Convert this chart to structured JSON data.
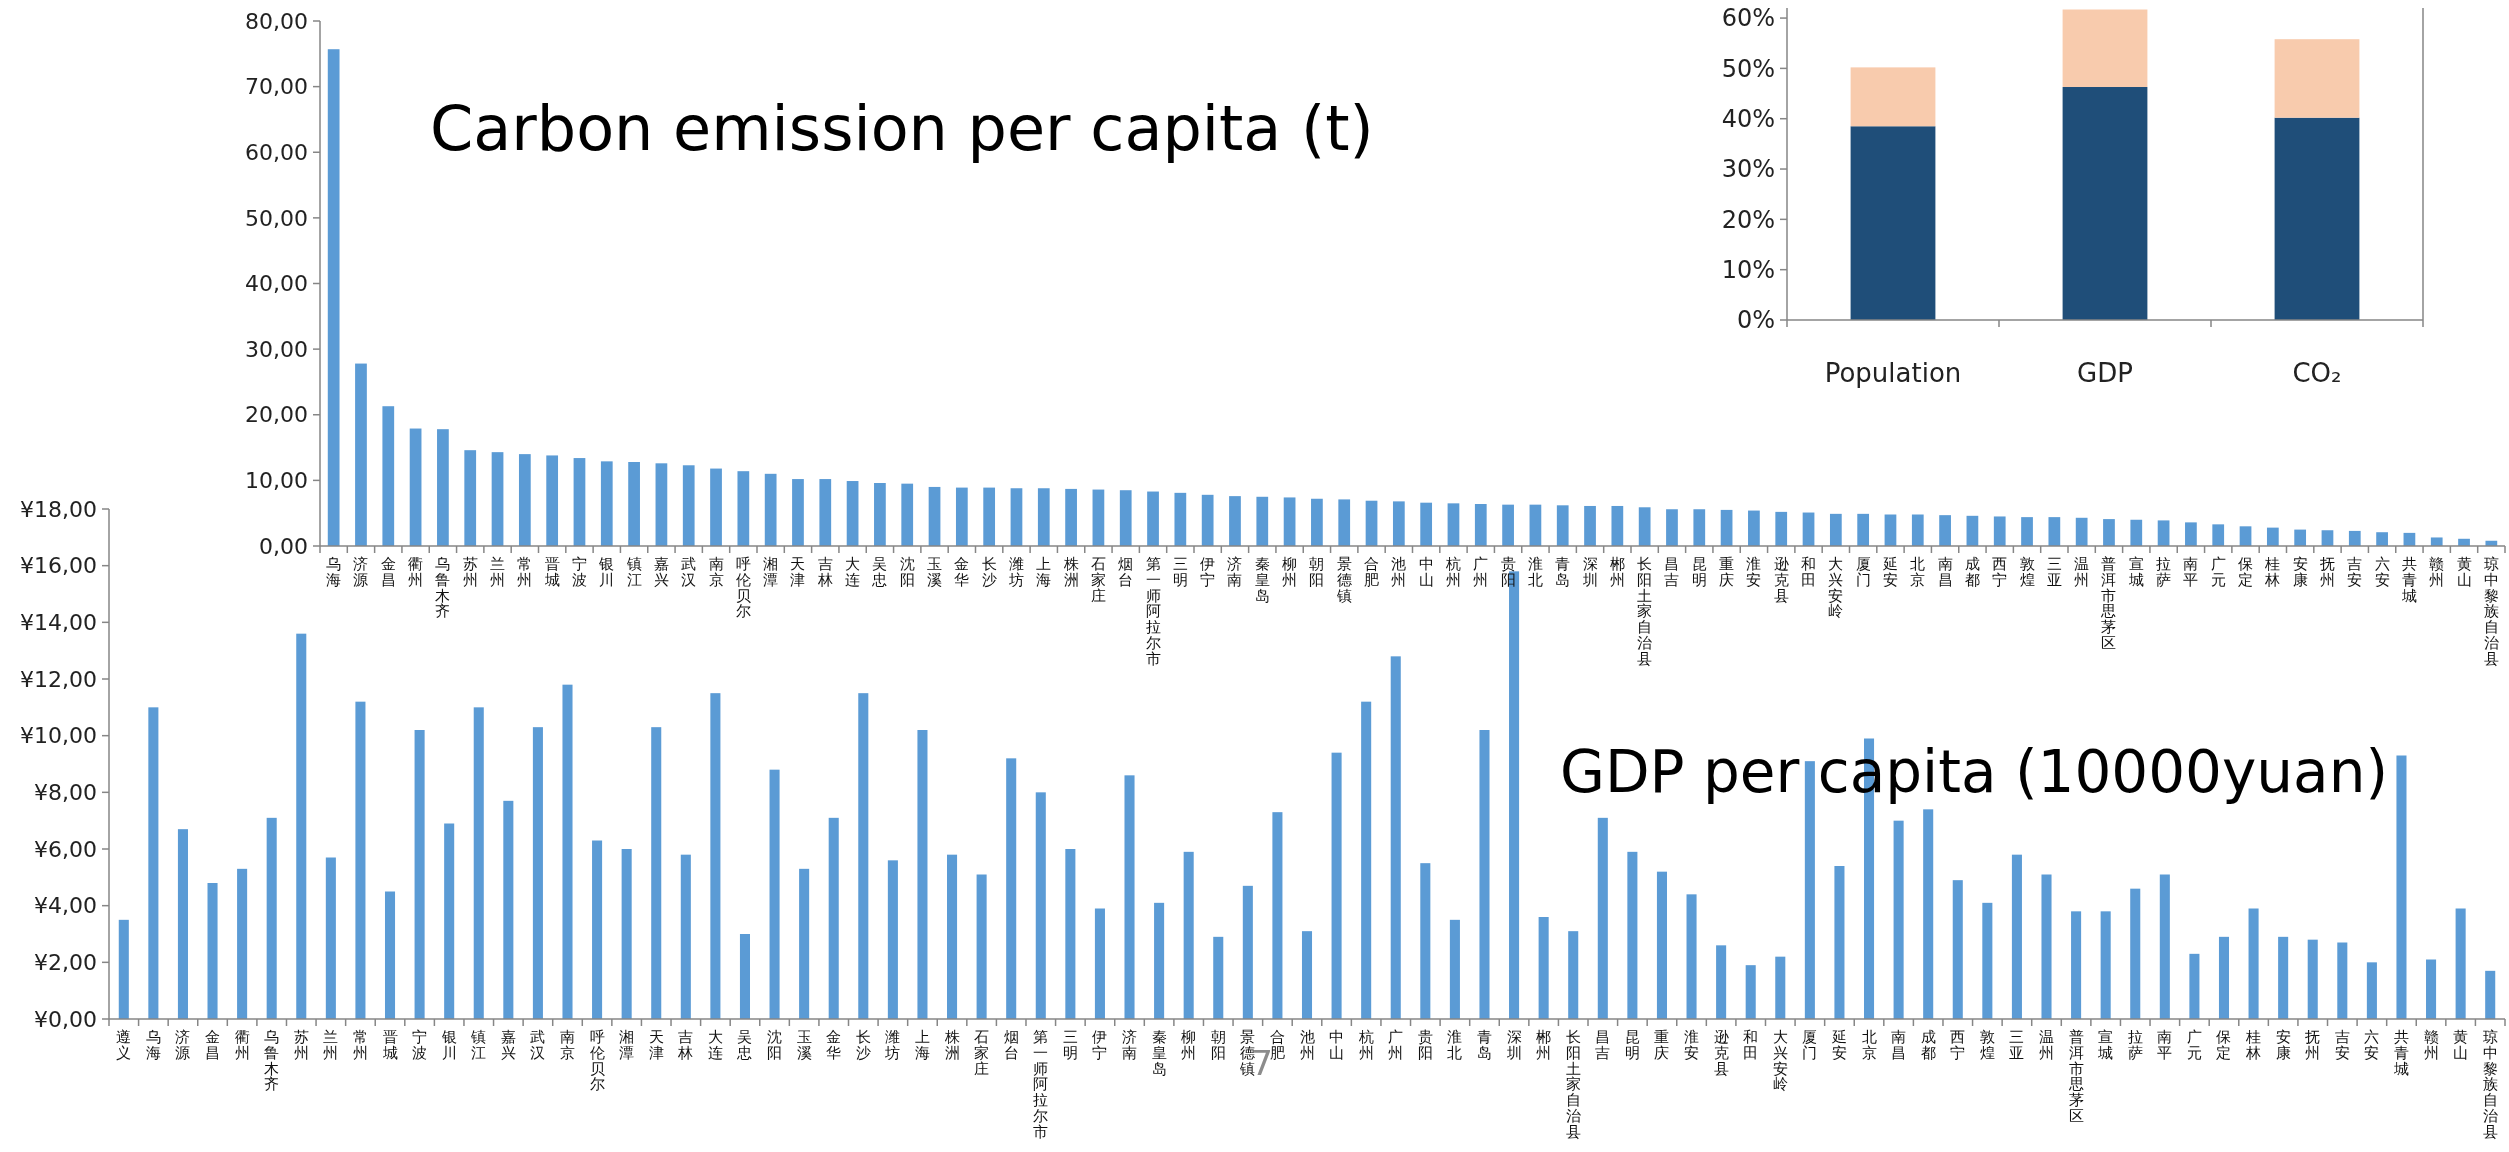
{
  "chart_data": [
    {
      "type": "bar",
      "title": "Carbon emission per capita (t)",
      "color": "#5b9bd5",
      "categories": [
        "乌海",
        "济源",
        "金昌",
        "衢州",
        "乌鲁木齐",
        "苏州",
        "兰州",
        "常州",
        "晋城",
        "宁波",
        "银川",
        "镇江",
        "嘉兴",
        "武汉",
        "南京",
        "呼伦贝尔",
        "湘潭",
        "天津",
        "吉林",
        "大连",
        "吴忠",
        "沈阳",
        "玉溪",
        "金华",
        "长沙",
        "潍坊",
        "上海",
        "株洲",
        "石家庄",
        "烟台",
        "第一师阿拉尔市",
        "三明",
        "伊宁",
        "济南",
        "秦皇岛",
        "柳州",
        "朝阳",
        "景德镇",
        "合肥",
        "池州",
        "中山",
        "杭州",
        "广州",
        "贵阳",
        "淮北",
        "青岛",
        "深圳",
        "郴州",
        "长阳土家自治县",
        "昌吉",
        "昆明",
        "重庆",
        "淮安",
        "逊克县",
        "和田",
        "大兴安岭",
        "厦门",
        "延安",
        "北京",
        "南昌",
        "成都",
        "西宁",
        "敦煌",
        "三亚",
        "温州",
        "普洱市思茅区",
        "宣城",
        "拉萨",
        "南平",
        "广元",
        "保定",
        "桂林",
        "安康",
        "抚州",
        "吉安",
        "六安",
        "共青城",
        "赣州",
        "黄山",
        "琼中黎族自治县"
      ],
      "values": [
        75.7,
        27.8,
        21.3,
        17.9,
        17.8,
        14.6,
        14.3,
        14.0,
        13.8,
        13.4,
        12.9,
        12.8,
        12.6,
        12.3,
        11.8,
        11.4,
        11.0,
        10.2,
        10.2,
        9.9,
        9.6,
        9.5,
        9.0,
        8.9,
        8.9,
        8.8,
        8.8,
        8.7,
        8.6,
        8.5,
        8.3,
        8.1,
        7.8,
        7.6,
        7.5,
        7.4,
        7.2,
        7.1,
        6.9,
        6.8,
        6.6,
        6.5,
        6.4,
        6.3,
        6.3,
        6.2,
        6.1,
        6.1,
        5.9,
        5.6,
        5.6,
        5.5,
        5.4,
        5.2,
        5.1,
        4.9,
        4.9,
        4.8,
        4.8,
        4.7,
        4.6,
        4.5,
        4.4,
        4.4,
        4.3,
        4.1,
        4.0,
        3.9,
        3.6,
        3.3,
        3.0,
        2.8,
        2.5,
        2.4,
        2.3,
        2.1,
        2.0,
        1.3,
        1.1,
        0.8
      ],
      "ylim": [
        0,
        80
      ],
      "yticks": [
        {
          "value": 0,
          "label": "0,00"
        },
        {
          "value": 10,
          "label": "10,00"
        },
        {
          "value": 20,
          "label": "20,00"
        },
        {
          "value": 30,
          "label": "30,00"
        },
        {
          "value": 40,
          "label": "40,00"
        },
        {
          "value": 50,
          "label": "50,00"
        },
        {
          "value": 60,
          "label": "60,00"
        },
        {
          "value": 70,
          "label": "70,00"
        },
        {
          "value": 80,
          "label": "80,00"
        }
      ]
    },
    {
      "type": "bar",
      "stacked": true,
      "categories": [
        "Population",
        "GDP",
        "CO₂"
      ],
      "series": [
        {
          "color": "#1f4e79",
          "values": [
            38.5,
            46.3,
            40.2
          ]
        },
        {
          "color": "#f8cbad",
          "values": [
            11.7,
            15.4,
            15.6
          ]
        }
      ],
      "ylim": [
        0,
        62
      ],
      "yticks": [
        {
          "value": 0,
          "label": "0%"
        },
        {
          "value": 10,
          "label": "10%"
        },
        {
          "value": 20,
          "label": "20%"
        },
        {
          "value": 30,
          "label": "30%"
        },
        {
          "value": 40,
          "label": "40%"
        },
        {
          "value": 50,
          "label": "50%"
        },
        {
          "value": 60,
          "label": "60%"
        }
      ]
    },
    {
      "type": "bar",
      "title": "GDP per capita (10000yuan)",
      "color": "#5b9bd5",
      "annotations": [
        "7"
      ],
      "categories": [
        "遵义",
        "乌海",
        "济源",
        "金昌",
        "衢州",
        "乌鲁木齐",
        "苏州",
        "兰州",
        "常州",
        "晋城",
        "宁波",
        "银川",
        "镇江",
        "嘉兴",
        "武汉",
        "南京",
        "呼伦贝尔",
        "湘潭",
        "天津",
        "吉林",
        "大连",
        "吴忠",
        "沈阳",
        "玉溪",
        "金华",
        "长沙",
        "潍坊",
        "上海",
        "株洲",
        "石家庄",
        "烟台",
        "第一师阿拉尔市",
        "三明",
        "伊宁",
        "济南",
        "秦皇岛",
        "柳州",
        "朝阳",
        "景德镇",
        "合肥",
        "池州",
        "中山",
        "杭州",
        "广州",
        "贵阳",
        "淮北",
        "青岛",
        "深圳",
        "郴州",
        "长阳土家自治县",
        "昌吉",
        "昆明",
        "重庆",
        "淮安",
        "逊克县",
        "和田",
        "大兴安岭",
        "厦门",
        "延安",
        "北京",
        "南昌",
        "成都",
        "西宁",
        "敦煌",
        "三亚",
        "温州",
        "普洱市思茅区",
        "宣城",
        "拉萨",
        "南平",
        "广元",
        "保定",
        "桂林",
        "安康",
        "抚州",
        "吉安",
        "六安",
        "共青城",
        "赣州",
        "黄山",
        "琼中黎族自治县"
      ],
      "values": [
        3.5,
        11.0,
        6.7,
        4.8,
        5.3,
        7.1,
        13.6,
        5.7,
        11.2,
        4.5,
        10.2,
        6.9,
        11.0,
        7.7,
        10.3,
        11.8,
        6.3,
        6.0,
        10.3,
        5.8,
        11.5,
        3.0,
        8.8,
        5.3,
        7.1,
        11.5,
        5.6,
        10.2,
        5.8,
        5.1,
        9.2,
        8.0,
        6.0,
        3.9,
        8.6,
        4.1,
        5.9,
        2.9,
        4.7,
        7.3,
        3.1,
        9.4,
        11.2,
        12.8,
        5.5,
        3.5,
        10.2,
        15.8,
        3.6,
        3.1,
        7.1,
        5.9,
        5.2,
        4.4,
        2.6,
        1.9,
        2.2,
        9.1,
        5.4,
        9.9,
        7.0,
        7.4,
        4.9,
        4.1,
        5.8,
        5.1,
        3.8,
        3.8,
        4.6,
        5.1,
        2.3,
        2.9,
        3.9,
        2.9,
        2.8,
        2.7,
        2.0,
        9.3,
        2.1,
        3.9,
        1.7
      ],
      "ylim": [
        0,
        18
      ],
      "yticks": [
        {
          "value": 0,
          "label": "¥0,00"
        },
        {
          "value": 2,
          "label": "¥2,00"
        },
        {
          "value": 4,
          "label": "¥4,00"
        },
        {
          "value": 6,
          "label": "¥6,00"
        },
        {
          "value": 8,
          "label": "¥8,00"
        },
        {
          "value": 10,
          "label": "¥10,00"
        },
        {
          "value": 12,
          "label": "¥12,00"
        },
        {
          "value": 14,
          "label": "¥14,00"
        },
        {
          "value": 16,
          "label": "¥16,00"
        },
        {
          "value": 18,
          "label": "¥18,00"
        }
      ]
    }
  ]
}
